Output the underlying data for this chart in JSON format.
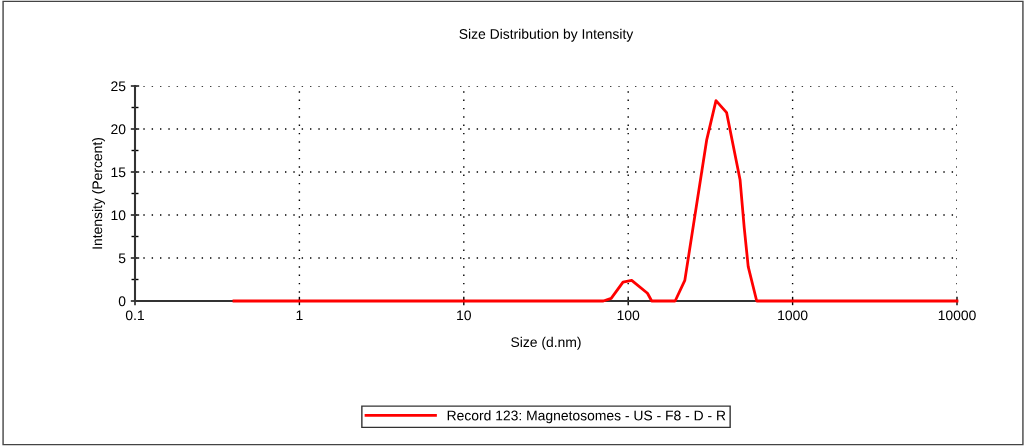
{
  "chart_data": {
    "type": "line",
    "title": "Size Distribution by Intensity",
    "xlabel": "Size (d.nm)",
    "ylabel": "Intensity (Percent)",
    "log": "x",
    "x": [
      0.4,
      70.6,
      78.8,
      93,
      105,
      131,
      139,
      193,
      221,
      300,
      342,
      397,
      479,
      508,
      537,
      605,
      10000
    ],
    "series": [
      {
        "name": "Record 123: Magnetosomes - US - F8 - D - R",
        "color": "#ff0000",
        "values": [
          0,
          0,
          0.3,
          2.2,
          2.4,
          0.9,
          0,
          0,
          2.4,
          18.7,
          23.3,
          21.9,
          14.1,
          8.5,
          4.0,
          0,
          0
        ]
      }
    ],
    "xlim": [
      0.1,
      10000
    ],
    "xticks": [
      {
        "value": 0.1,
        "label": "0.1"
      },
      1,
      10,
      100,
      1000,
      10000
    ],
    "ylim": [
      0,
      25
    ],
    "yticks": [
      0,
      5,
      10,
      15,
      20,
      25
    ],
    "grid": true,
    "legend": "bottom",
    "line_style": "solid",
    "marker": "none"
  }
}
